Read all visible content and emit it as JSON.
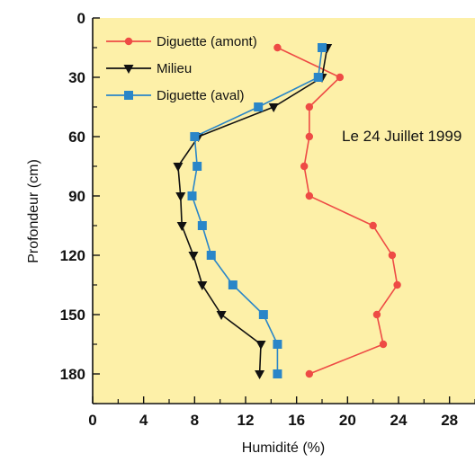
{
  "chart_data": {
    "type": "line",
    "orientation": "x-value-y-depth",
    "xlabel": "Humidité (%)",
    "ylabel": "Profondeur (cm)",
    "xlim": [
      0,
      30
    ],
    "ylim": [
      0,
      195
    ],
    "y_inverted": true,
    "x_ticks": [
      "0",
      "4",
      "8",
      "12",
      "16",
      "20",
      "24",
      "28"
    ],
    "x_tick_values": [
      0,
      4,
      8,
      12,
      16,
      20,
      24,
      28
    ],
    "y_ticks": [
      "0",
      "30",
      "60",
      "90",
      "120",
      "150",
      "180"
    ],
    "y_tick_values": [
      0,
      30,
      60,
      90,
      120,
      150,
      180
    ],
    "grid": false,
    "background": "#fdf0a8",
    "legend_position": "top-left",
    "annotation": "Le 24 Juillet 1999",
    "series": [
      {
        "name": "Diguette (amont)",
        "color": "#ee4b45",
        "marker": "circle",
        "x": [
          14.5,
          19.4,
          17.0,
          17.0,
          16.6,
          17.0,
          22.0,
          23.5,
          23.9,
          22.3,
          22.8,
          17.0
        ],
        "y": [
          15,
          30,
          45,
          60,
          75,
          90,
          105,
          120,
          135,
          150,
          165,
          180
        ]
      },
      {
        "name": "Milieu",
        "color": "#111111",
        "marker": "triangle-down",
        "x": [
          18.4,
          18.0,
          14.2,
          8.3,
          6.7,
          6.9,
          7.0,
          7.9,
          8.6,
          10.1,
          13.2,
          13.1
        ],
        "y": [
          15,
          30,
          45,
          60,
          75,
          90,
          105,
          120,
          135,
          150,
          165,
          180
        ]
      },
      {
        "name": "Diguette (aval)",
        "color": "#2a86c8",
        "marker": "square",
        "x": [
          18.0,
          17.7,
          13.0,
          8.0,
          8.2,
          7.8,
          8.6,
          9.3,
          11.0,
          13.4,
          14.5,
          14.5
        ],
        "y": [
          15,
          30,
          45,
          60,
          75,
          90,
          105,
          120,
          135,
          150,
          165,
          180
        ]
      }
    ]
  }
}
